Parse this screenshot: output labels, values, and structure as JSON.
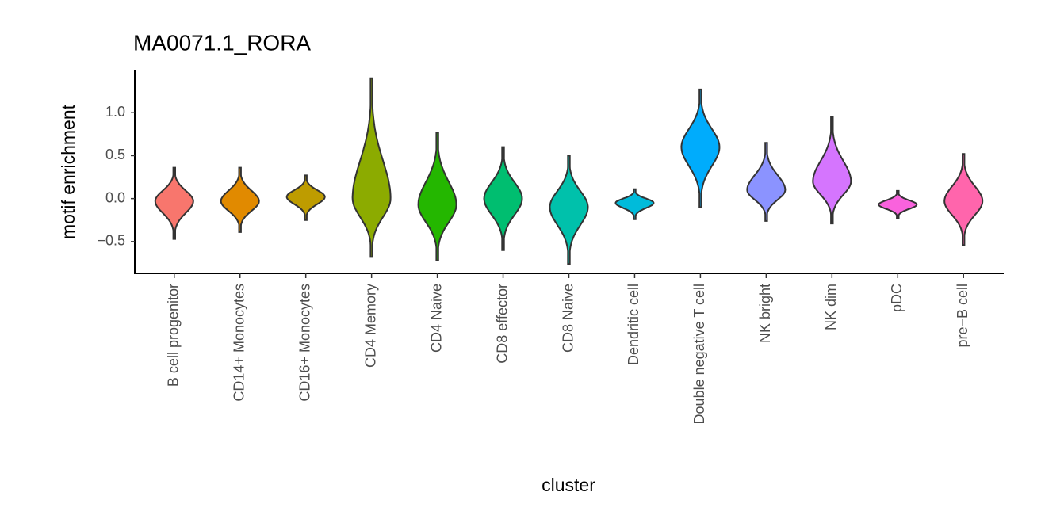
{
  "chart_data": {
    "type": "violin",
    "title": "MA0071.1_RORA",
    "x_label": "cluster",
    "y_label": "motif enrichment",
    "categories": [
      "B cell progenitor",
      "CD14+ Monocytes",
      "CD16+ Monocytes",
      "CD4 Memory",
      "CD4 Naive",
      "CD8 effector",
      "CD8 Naive",
      "Dendritic cell",
      "Double negative T cell",
      "NK bright",
      "NK dim",
      "pDC",
      "pre−B cell"
    ],
    "colors": [
      "#F8766D",
      "#E18A00",
      "#BE9C00",
      "#8CAB00",
      "#24B700",
      "#00BE70",
      "#00C1AB",
      "#00BBDA",
      "#00ACFC",
      "#8B93FF",
      "#D575FE",
      "#F962DD",
      "#FF65AC"
    ],
    "min": [
      -0.47,
      -0.39,
      -0.25,
      -0.68,
      -0.72,
      -0.6,
      -0.76,
      -0.24,
      -0.1,
      -0.26,
      -0.29,
      -0.23,
      -0.54
    ],
    "peak": [
      -0.03,
      -0.03,
      0.02,
      0.0,
      -0.07,
      0.0,
      -0.1,
      -0.05,
      0.6,
      0.1,
      0.2,
      -0.07,
      -0.03
    ],
    "max": [
      0.36,
      0.36,
      0.27,
      1.4,
      0.77,
      0.6,
      0.5,
      0.11,
      1.27,
      0.65,
      0.95,
      0.09,
      0.52
    ],
    "ylim": [
      -0.87,
      1.5
    ],
    "yticks": [
      {
        "value": -0.5,
        "label": "−0.5"
      },
      {
        "value": 0,
        "label": "0.0"
      },
      0.5,
      {
        "value": 1,
        "label": "1.0"
      }
    ]
  }
}
